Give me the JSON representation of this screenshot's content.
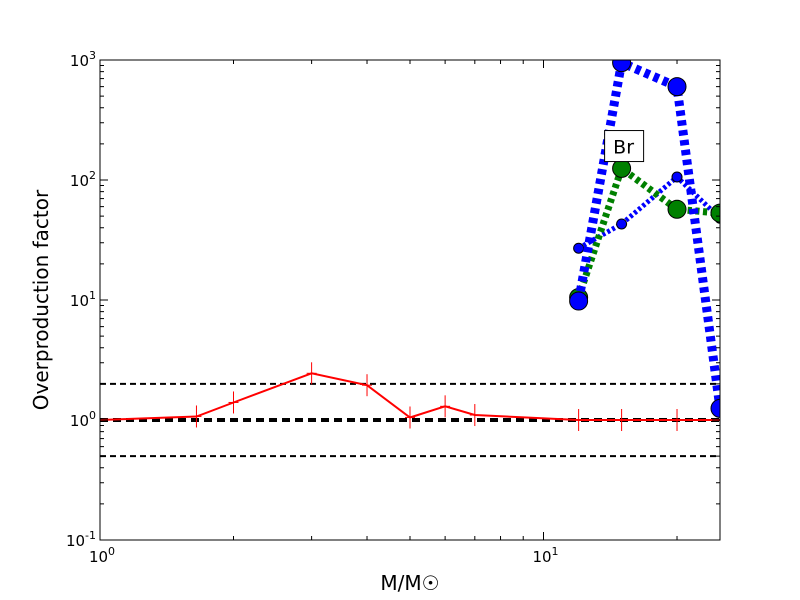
{
  "chart_data": {
    "type": "line",
    "x_scale": "log",
    "y_scale": "log",
    "xlim": [
      1,
      25
    ],
    "ylim": [
      0.1,
      1000
    ],
    "xlabel": "M/M☉",
    "ylabel": "Overproduction factor",
    "x_ticks": [
      {
        "value": 1,
        "mant": "10",
        "exp": "0"
      },
      {
        "value": 10,
        "mant": "10",
        "exp": "1"
      }
    ],
    "y_ticks": [
      {
        "value": 0.1,
        "mant": "10",
        "exp": "-1"
      },
      {
        "value": 1,
        "mant": "10",
        "exp": "0"
      },
      {
        "value": 10,
        "mant": "10",
        "exp": "1"
      },
      {
        "value": 100,
        "mant": "10",
        "exp": "2"
      },
      {
        "value": 1000,
        "mant": "10",
        "exp": "3"
      }
    ],
    "annotation": {
      "text": "Br",
      "x": 15,
      "y": 190
    },
    "reference_lines": [
      {
        "y": 0.5,
        "color": "#000000",
        "style": "dashed",
        "width": 2
      },
      {
        "y": 1,
        "color": "#000000",
        "style": "dashed",
        "width": 4
      },
      {
        "y": 2,
        "color": "#000000",
        "style": "dashed",
        "width": 2
      }
    ],
    "series": [
      {
        "color": "#ff0000",
        "style": "solid",
        "width": 2,
        "marker": "errorbar",
        "x": [
          1,
          1.65,
          2,
          3,
          4,
          5,
          6,
          7,
          12,
          15,
          20,
          25
        ],
        "y": [
          1.0,
          1.07,
          1.4,
          2.45,
          1.95,
          1.05,
          1.3,
          1.1,
          1.0,
          1.0,
          1.0,
          1.0
        ]
      },
      {
        "color": "#0000ff",
        "style": "dotted",
        "width": 5,
        "marker": "circle",
        "marker_radius": 5,
        "x": [
          12,
          15,
          20,
          25
        ],
        "y": [
          27,
          43,
          106,
          48
        ]
      },
      {
        "color": "#008000",
        "style": "dotted",
        "width": 7,
        "marker": "circle",
        "marker_radius": 9,
        "x": [
          12,
          15,
          20,
          25
        ],
        "y": [
          10.5,
          125,
          57,
          53
        ]
      },
      {
        "color": "#0000ff",
        "style": "dotted",
        "width": 9,
        "marker": "circle",
        "marker_radius": 9,
        "x": [
          12,
          15,
          20,
          25
        ],
        "y": [
          9.8,
          950,
          600,
          1.25
        ]
      }
    ]
  }
}
